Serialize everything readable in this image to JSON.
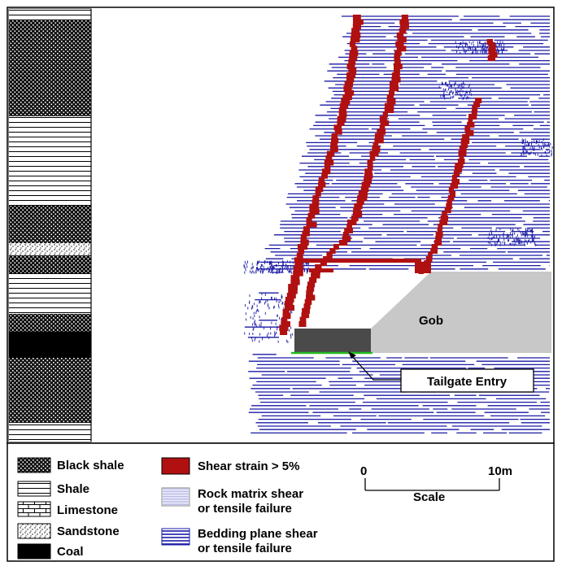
{
  "labels": {
    "gob": "Gob",
    "tailgate": "Tailgate Entry"
  },
  "legend": {
    "black_shale": "Black shale",
    "shale": "Shale",
    "limestone": "Limestone",
    "sandstone": "Sandstone",
    "coal": "Coal",
    "shear_strain": "Shear strain > 5%",
    "rock_matrix_1": "Rock matrix shear",
    "rock_matrix_2": "or tensile failure",
    "bedding_1": "Bedding plane shear",
    "bedding_2": "or tensile failure"
  },
  "scale": {
    "start": "0",
    "end": "10m",
    "label": "Scale"
  },
  "colors": {
    "bedding_blue": "#1a1aa6",
    "shear_red": "#b01010",
    "gob_gray": "#c8c8c8",
    "coal_gray": "#4a4a4a",
    "floor_green": "#22bb22"
  }
}
